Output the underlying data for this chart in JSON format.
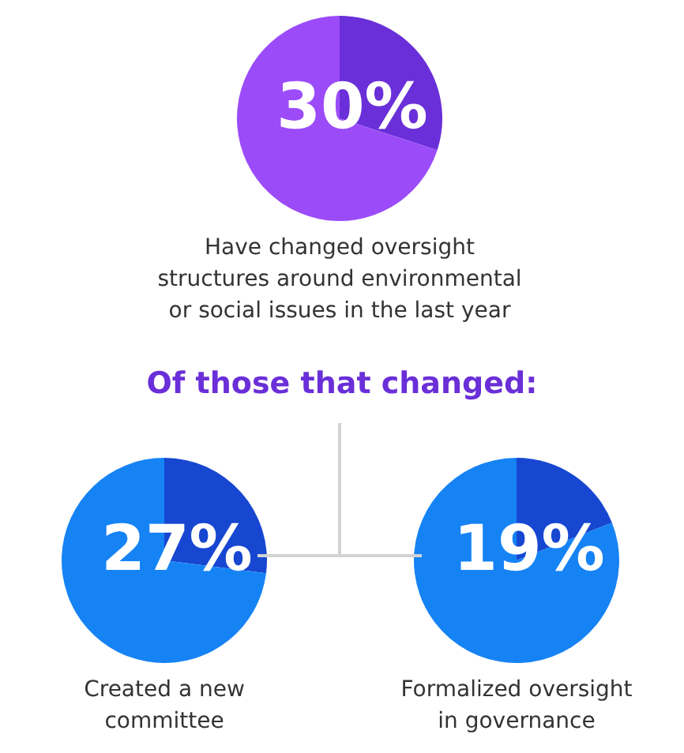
{
  "chart_data": [
    {
      "type": "pie",
      "title": "Have changed oversight structures around environmental or social issues in the last year",
      "categories": [
        null,
        null
      ],
      "values": [
        30,
        70
      ],
      "colors": [
        "#6a2fd8",
        "#9b4cf8"
      ],
      "value_labels": [
        "30%",
        null
      ],
      "annotations": [
        "Of those that changed:"
      ]
    },
    {
      "type": "pie",
      "title": "Created a new committee",
      "categories": [
        null,
        null
      ],
      "values": [
        27,
        73
      ],
      "colors": [
        "#1747d1",
        "#1683f5"
      ],
      "value_labels": [
        "27%",
        null
      ]
    },
    {
      "type": "pie",
      "title": "Formalized oversight in governance",
      "categories": [
        null,
        null
      ],
      "values": [
        19,
        81
      ],
      "colors": [
        "#1747d1",
        "#1683f5"
      ],
      "value_labels": [
        "19%",
        null
      ]
    }
  ]
}
